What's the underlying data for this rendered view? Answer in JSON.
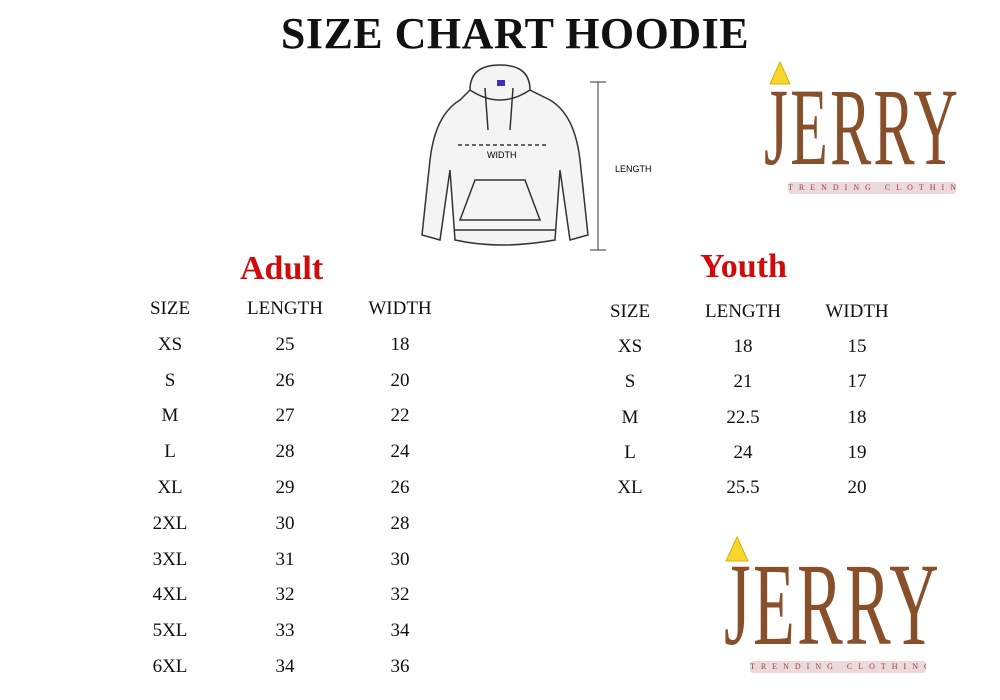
{
  "title": "SIZE CHART HOODIE",
  "diagram": {
    "width_label": "WIDTH",
    "length_label": "LENGTH"
  },
  "logo": {
    "name": "JERRY",
    "tagline": "TRENDING CLOTHING",
    "color": "#87502b"
  },
  "adult": {
    "heading": "Adult",
    "headers": [
      "SIZE",
      "LENGTH",
      "WIDTH"
    ],
    "rows": [
      [
        "XS",
        "25",
        "18"
      ],
      [
        "S",
        "26",
        "20"
      ],
      [
        "M",
        "27",
        "22"
      ],
      [
        "L",
        "28",
        "24"
      ],
      [
        "XL",
        "29",
        "26"
      ],
      [
        "2XL",
        "30",
        "28"
      ],
      [
        "3XL",
        "31",
        "30"
      ],
      [
        "4XL",
        "32",
        "32"
      ],
      [
        "5XL",
        "33",
        "34"
      ],
      [
        "6XL",
        "34",
        "36"
      ]
    ]
  },
  "youth": {
    "heading": "Youth",
    "headers": [
      "SIZE",
      "LENGTH",
      "WIDTH"
    ],
    "rows": [
      [
        "XS",
        "18",
        "15"
      ],
      [
        "S",
        "21",
        "17"
      ],
      [
        "M",
        "22.5",
        "18"
      ],
      [
        "L",
        "24",
        "19"
      ],
      [
        "XL",
        "25.5",
        "20"
      ]
    ]
  },
  "colors": {
    "heading": "#d10a0a",
    "text": "#111111"
  }
}
